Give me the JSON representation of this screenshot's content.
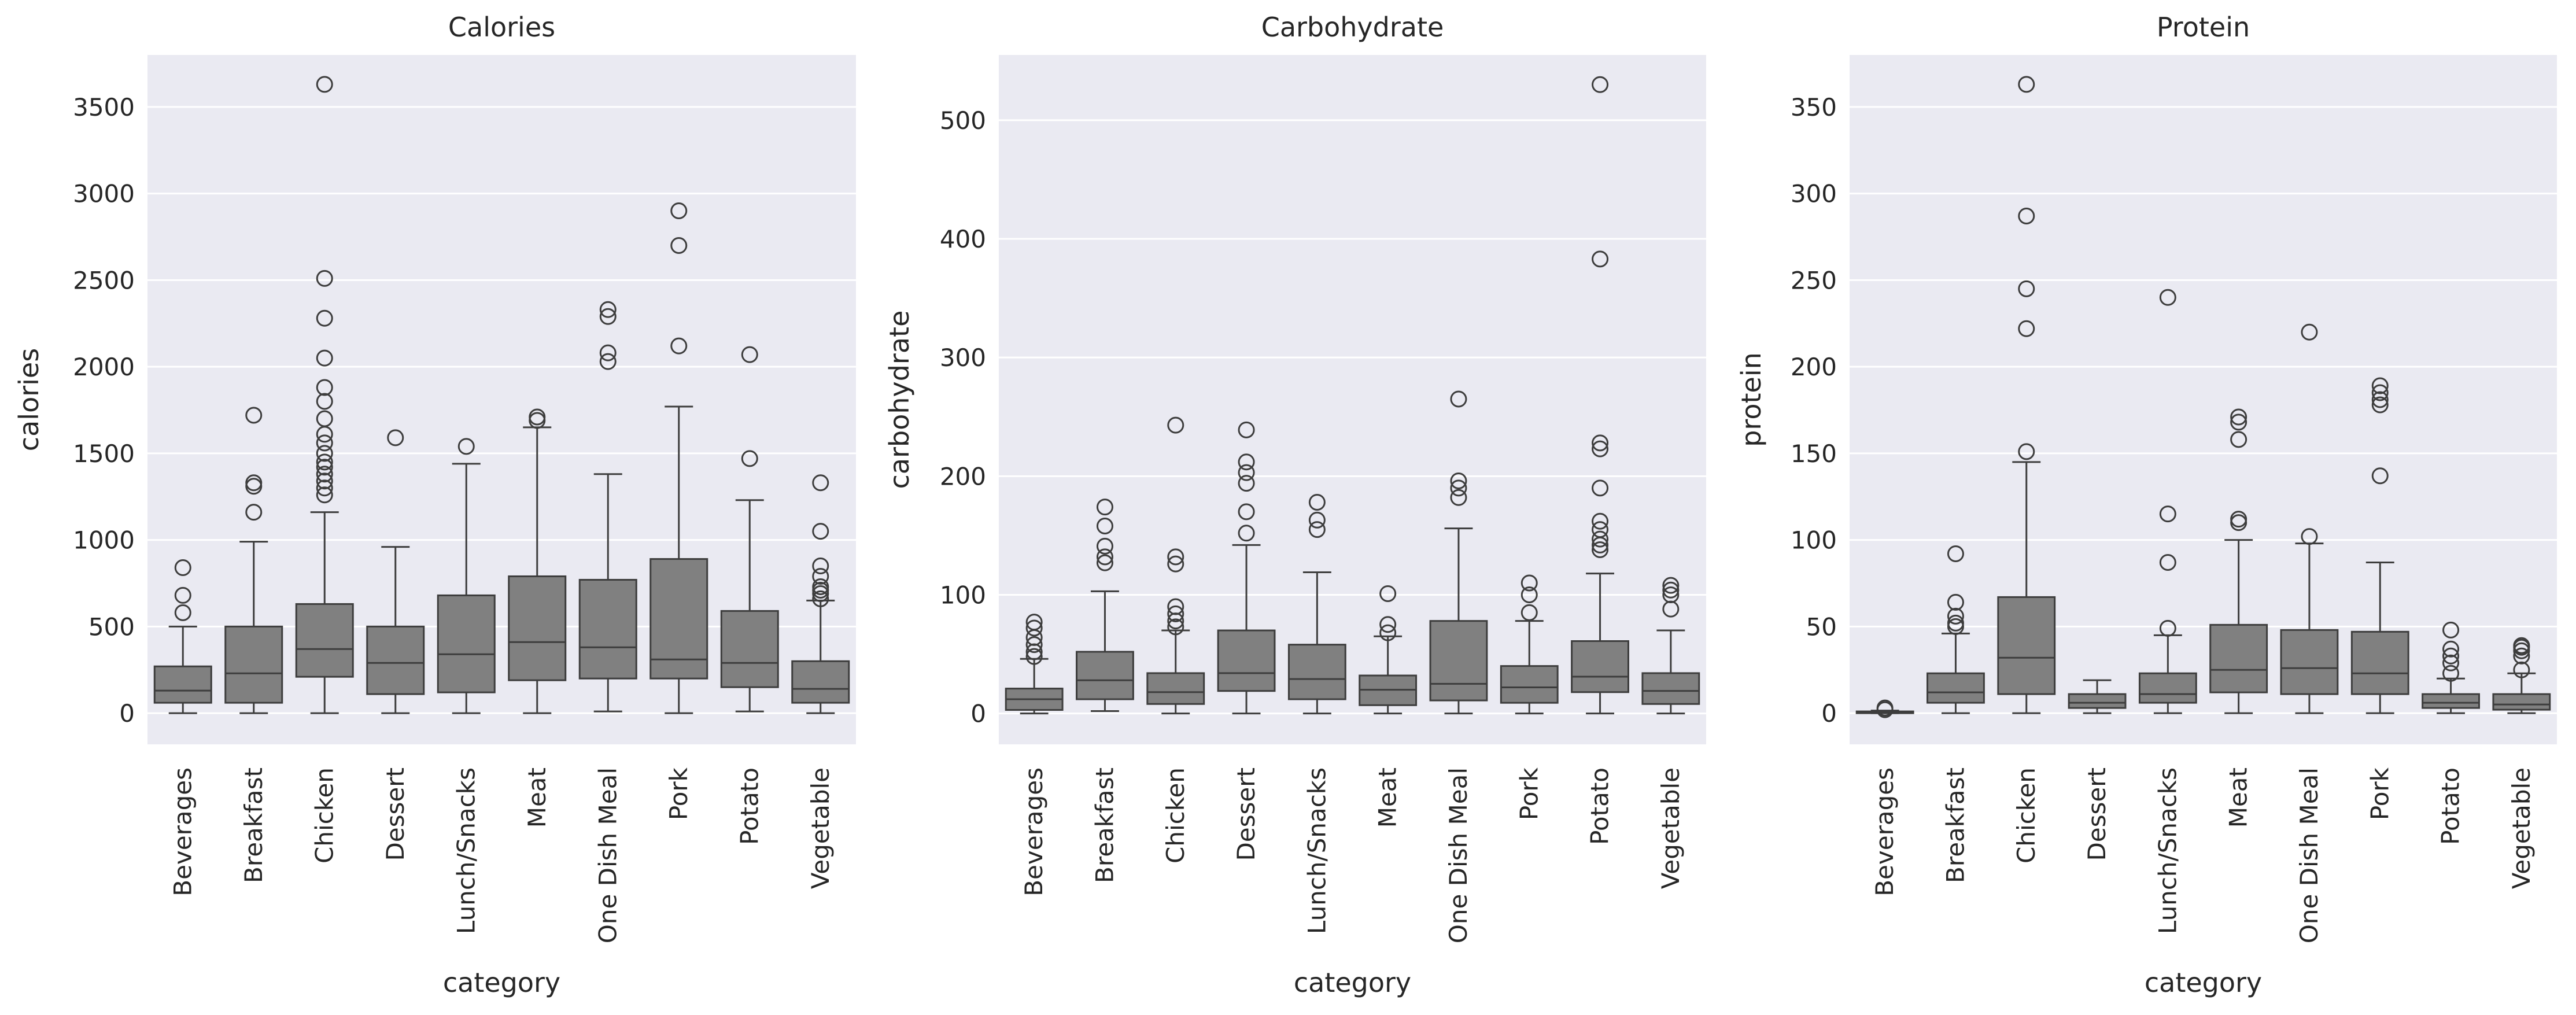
{
  "chart_data": [
    {
      "type": "box",
      "title": "Calories",
      "xlabel": "category",
      "ylabel": "calories",
      "ylim": [
        -180,
        3800
      ],
      "yticks": [
        0,
        500,
        1000,
        1500,
        2000,
        2500,
        3000,
        3500
      ],
      "grid": true,
      "categories": [
        "Beverages",
        "Breakfast",
        "Chicken",
        "Dessert",
        "Lunch/Snacks",
        "Meat",
        "One Dish Meal",
        "Pork",
        "Potato",
        "Vegetable"
      ],
      "boxes": [
        {
          "whisker_low": 0,
          "q1": 60,
          "median": 130,
          "q3": 270,
          "whisker_high": 500,
          "outliers": [
            580,
            680,
            840
          ]
        },
        {
          "whisker_low": 0,
          "q1": 60,
          "median": 230,
          "q3": 500,
          "whisker_high": 990,
          "outliers": [
            1160,
            1310,
            1330,
            1720
          ]
        },
        {
          "whisker_low": 0,
          "q1": 210,
          "median": 370,
          "q3": 630,
          "whisker_high": 1160,
          "outliers": [
            1260,
            1300,
            1340,
            1380,
            1420,
            1450,
            1500,
            1560,
            1610,
            1700,
            1800,
            1880,
            2050,
            2280,
            2510,
            3630
          ]
        },
        {
          "whisker_low": 0,
          "q1": 110,
          "median": 290,
          "q3": 500,
          "whisker_high": 960,
          "outliers": [
            1590
          ]
        },
        {
          "whisker_low": 0,
          "q1": 120,
          "median": 340,
          "q3": 680,
          "whisker_high": 1440,
          "outliers": [
            1540
          ]
        },
        {
          "whisker_low": 0,
          "q1": 190,
          "median": 410,
          "q3": 790,
          "whisker_high": 1650,
          "outliers": [
            1690,
            1710
          ]
        },
        {
          "whisker_low": 10,
          "q1": 200,
          "median": 380,
          "q3": 770,
          "whisker_high": 1380,
          "outliers": [
            2030,
            2080,
            2290,
            2330
          ]
        },
        {
          "whisker_low": 0,
          "q1": 200,
          "median": 310,
          "q3": 890,
          "whisker_high": 1770,
          "outliers": [
            2120,
            2700,
            2900
          ]
        },
        {
          "whisker_low": 10,
          "q1": 150,
          "median": 290,
          "q3": 590,
          "whisker_high": 1230,
          "outliers": [
            1470,
            2070
          ]
        },
        {
          "whisker_low": 0,
          "q1": 60,
          "median": 140,
          "q3": 300,
          "whisker_high": 650,
          "outliers": [
            660,
            690,
            710,
            730,
            790,
            850,
            1050,
            1330
          ]
        }
      ]
    },
    {
      "type": "box",
      "title": "Carbohydrate",
      "xlabel": "category",
      "ylabel": "carbohydrate",
      "ylim": [
        -26,
        555
      ],
      "yticks": [
        0,
        100,
        200,
        300,
        400,
        500
      ],
      "grid": true,
      "categories": [
        "Beverages",
        "Breakfast",
        "Chicken",
        "Dessert",
        "Lunch/Snacks",
        "Meat",
        "One Dish Meal",
        "Pork",
        "Potato",
        "Vegetable"
      ],
      "boxes": [
        {
          "whisker_low": 0,
          "q1": 3,
          "median": 12,
          "q3": 21,
          "whisker_high": 46,
          "outliers": [
            48,
            52,
            58,
            64,
            72,
            77
          ]
        },
        {
          "whisker_low": 2,
          "q1": 12,
          "median": 28,
          "q3": 52,
          "whisker_high": 103,
          "outliers": [
            127,
            132,
            141,
            158,
            174
          ]
        },
        {
          "whisker_low": 0,
          "q1": 8,
          "median": 18,
          "q3": 34,
          "whisker_high": 70,
          "outliers": [
            73,
            78,
            84,
            90,
            126,
            132,
            243
          ]
        },
        {
          "whisker_low": 0,
          "q1": 19,
          "median": 34,
          "q3": 70,
          "whisker_high": 142,
          "outliers": [
            152,
            170,
            194,
            203,
            212,
            239
          ]
        },
        {
          "whisker_low": 0,
          "q1": 12,
          "median": 29,
          "q3": 58,
          "whisker_high": 119,
          "outliers": [
            155,
            163,
            178
          ]
        },
        {
          "whisker_low": 0,
          "q1": 7,
          "median": 20,
          "q3": 32,
          "whisker_high": 65,
          "outliers": [
            68,
            75,
            101
          ]
        },
        {
          "whisker_low": 0,
          "q1": 11,
          "median": 25,
          "q3": 78,
          "whisker_high": 156,
          "outliers": [
            182,
            190,
            196,
            265
          ]
        },
        {
          "whisker_low": 0,
          "q1": 9,
          "median": 22,
          "q3": 40,
          "whisker_high": 78,
          "outliers": [
            85,
            100,
            110
          ]
        },
        {
          "whisker_low": 0,
          "q1": 18,
          "median": 31,
          "q3": 61,
          "whisker_high": 118,
          "outliers": [
            138,
            142,
            147,
            155,
            162,
            190,
            223,
            228,
            383,
            530
          ]
        },
        {
          "whisker_low": 0,
          "q1": 8,
          "median": 19,
          "q3": 34,
          "whisker_high": 70,
          "outliers": [
            88,
            100,
            104,
            108
          ]
        }
      ]
    },
    {
      "type": "box",
      "title": "Protein",
      "xlabel": "category",
      "ylabel": "protein",
      "ylim": [
        -18,
        380
      ],
      "yticks": [
        0,
        50,
        100,
        150,
        200,
        250,
        300,
        350
      ],
      "grid": true,
      "categories": [
        "Beverages",
        "Breakfast",
        "Chicken",
        "Dessert",
        "Lunch/Snacks",
        "Meat",
        "One Dish Meal",
        "Pork",
        "Potato",
        "Vegetable"
      ],
      "boxes": [
        {
          "whisker_low": 0,
          "q1": 0,
          "median": 0.5,
          "q3": 1,
          "whisker_high": 1.5,
          "outliers": [
            2,
            3
          ]
        },
        {
          "whisker_low": 0,
          "q1": 6,
          "median": 12,
          "q3": 23,
          "whisker_high": 46,
          "outliers": [
            50,
            52,
            56,
            64,
            92
          ]
        },
        {
          "whisker_low": 0,
          "q1": 11,
          "median": 32,
          "q3": 67,
          "whisker_high": 145,
          "outliers": [
            151,
            222,
            245,
            287,
            363
          ]
        },
        {
          "whisker_low": 0,
          "q1": 3,
          "median": 6,
          "q3": 11,
          "whisker_high": 19,
          "outliers": []
        },
        {
          "whisker_low": 0,
          "q1": 6,
          "median": 11,
          "q3": 23,
          "whisker_high": 45,
          "outliers": [
            49,
            87,
            115,
            240
          ]
        },
        {
          "whisker_low": 0,
          "q1": 12,
          "median": 25,
          "q3": 51,
          "whisker_high": 100,
          "outliers": [
            110,
            112,
            158,
            168,
            171
          ]
        },
        {
          "whisker_low": 0,
          "q1": 11,
          "median": 26,
          "q3": 48,
          "whisker_high": 98,
          "outliers": [
            102,
            220
          ]
        },
        {
          "whisker_low": 0,
          "q1": 11,
          "median": 23,
          "q3": 47,
          "whisker_high": 87,
          "outliers": [
            137,
            178,
            181,
            185,
            189
          ]
        },
        {
          "whisker_low": 0,
          "q1": 3,
          "median": 6,
          "q3": 11,
          "whisker_high": 20,
          "outliers": [
            23,
            29,
            33,
            37,
            48
          ]
        },
        {
          "whisker_low": 0,
          "q1": 2,
          "median": 5,
          "q3": 11,
          "whisker_high": 23,
          "outliers": [
            25,
            33,
            36,
            38,
            39
          ]
        }
      ]
    }
  ],
  "style": {
    "background": "#ffffff",
    "panel_background": "#eaeaf2",
    "grid_color": "#ffffff",
    "box_fill": "#808080",
    "line_color": "#3d3d3d",
    "text_color": "#262626"
  }
}
